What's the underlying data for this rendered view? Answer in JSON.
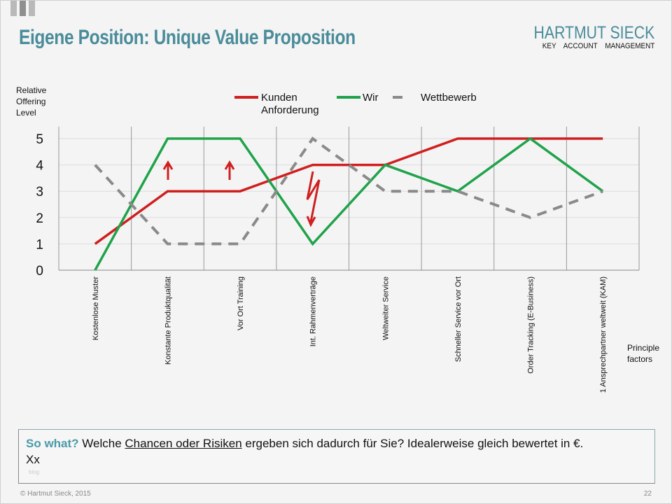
{
  "header": {
    "title": "Eigene Position: Unique Value Proposition",
    "logo_line1": "HARTMUT SIECK",
    "logo_line2": "KEY ACCOUNT MANAGEMENT"
  },
  "chart_data": {
    "type": "line",
    "ylabel": "Relative Offering Level",
    "xlabel": "Principle factors",
    "ylim": [
      0,
      5
    ],
    "yticks": [
      "0",
      "1",
      "2",
      "3",
      "4",
      "5"
    ],
    "grid": true,
    "legend": "top-center",
    "categories": [
      "Kostenlose Muster",
      "Konstante Produktqualität",
      "Vor Ort Training",
      "Int. Rahmenverträge",
      "Weltweiter Service",
      "Schneller Service vor Ort",
      "Order Tracking (E-Business)",
      "1 Ansprechpartner weltweit (KAM)"
    ],
    "series": [
      {
        "name": "Kunden Anforderung",
        "color": "#d01f1f",
        "dash": false,
        "values": [
          1,
          3,
          3,
          4,
          4,
          5,
          5,
          5
        ]
      },
      {
        "name": "Wir",
        "color": "#1fa34a",
        "dash": false,
        "values": [
          0,
          5,
          5,
          1,
          4,
          3,
          5,
          3
        ]
      },
      {
        "name": "Wettbewerb",
        "color": "#8a8a8a",
        "dash": true,
        "values": [
          4,
          1,
          1,
          5,
          3,
          3,
          2,
          3
        ]
      }
    ]
  },
  "legend": {
    "kunden_line1": "Kunden",
    "kunden_line2": "Anforderung",
    "wir": "Wir",
    "wettbewerb": "Wettbewerb"
  },
  "sowhat": {
    "label": "So what?",
    "pre": " Welche ",
    "underlined": "Chancen oder Risiken",
    "post": " ergeben sich dadurch für Sie? Idealerweise gleich bewertet in €.",
    "line2": "Xx",
    "tiny": "blog"
  },
  "footer": {
    "copyright": "© Hartmut Sieck, 2015",
    "page": "22"
  }
}
